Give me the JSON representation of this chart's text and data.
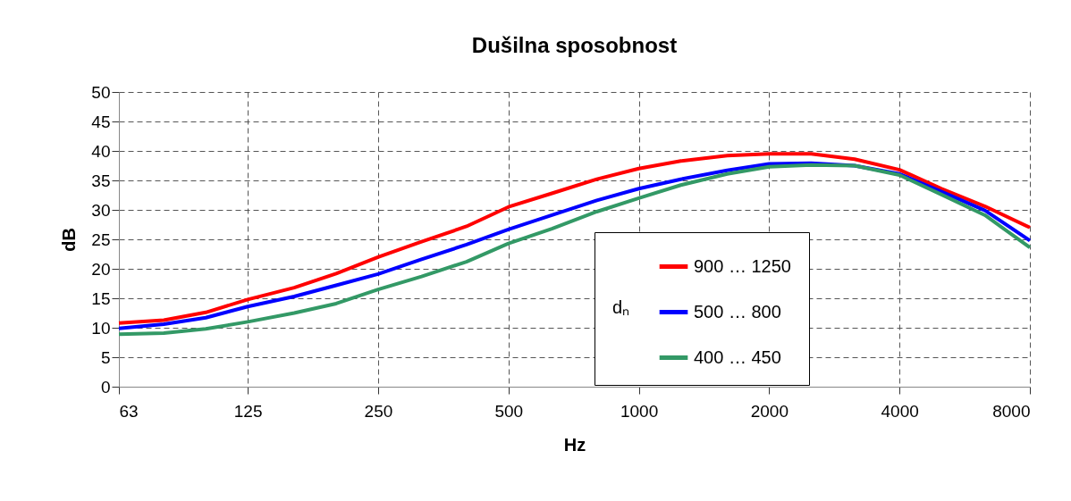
{
  "chart_data": {
    "type": "line",
    "title": "Dušilna sposobnost",
    "xlabel": "Hz",
    "ylabel": "dB",
    "legend_title": "dₙ",
    "x": [
      63,
      80,
      100,
      125,
      160,
      200,
      250,
      315,
      400,
      500,
      630,
      800,
      1000,
      1250,
      1600,
      2000,
      2500,
      3150,
      4000,
      5000,
      6300,
      8000
    ],
    "series": [
      {
        "name": "900 … 1250",
        "color": "#ff0000",
        "values": [
          10.8,
          11.3,
          12.6,
          14.8,
          16.8,
          19.2,
          22,
          24.6,
          27.2,
          30.5,
          32.8,
          35.2,
          37,
          38.3,
          39.2,
          39.5,
          39.5,
          38.6,
          36.8,
          33.6,
          30.6,
          27
        ]
      },
      {
        "name": "500 … 800",
        "color": "#0000ff",
        "values": [
          9.9,
          10.6,
          11.7,
          13.6,
          15.3,
          17.2,
          19.1,
          21.6,
          24.1,
          26.7,
          29.1,
          31.6,
          33.6,
          35.2,
          36.7,
          37.8,
          37.9,
          37.5,
          36.1,
          33.1,
          29.9,
          24.8
        ]
      },
      {
        "name": "400 … 450",
        "color": "#339966",
        "values": [
          8.9,
          9.1,
          9.8,
          11,
          12.5,
          14.1,
          16.5,
          18.7,
          21.2,
          24.3,
          26.8,
          29.7,
          32,
          34.2,
          36.1,
          37.3,
          37.6,
          37.5,
          35.9,
          32.6,
          29.1,
          23.6
        ]
      }
    ],
    "xlim": [
      63,
      8000
    ],
    "ylim": [
      0,
      50
    ],
    "xticks": [
      63,
      125,
      250,
      500,
      1000,
      2000,
      4000,
      8000
    ],
    "yticks": [
      0,
      5,
      10,
      15,
      20,
      25,
      30,
      35,
      40,
      45,
      50
    ],
    "grid": true,
    "legend": "right",
    "log": "x",
    "line_style": "solid"
  }
}
